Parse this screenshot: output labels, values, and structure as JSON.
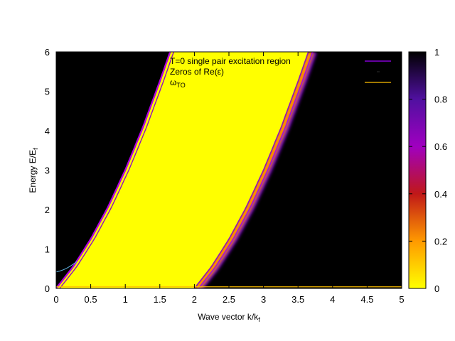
{
  "chart_data": {
    "type": "heatmap",
    "title": "",
    "xlabel_main": "Wave vector k/k",
    "xlabel_sub": "f",
    "ylabel_main": "Energy E/E",
    "ylabel_sub": "f",
    "xlim": [
      0,
      5
    ],
    "ylim": [
      0,
      6
    ],
    "x_ticks": [
      "0",
      "0.5",
      "1",
      "1.5",
      "2",
      "2.5",
      "3",
      "3.5",
      "4",
      "4.5",
      "5"
    ],
    "y_ticks": [
      "0",
      "1",
      "2",
      "3",
      "4",
      "5",
      "6"
    ],
    "colorbar": {
      "range": [
        0,
        1
      ],
      "ticks": [
        "0",
        "0.2",
        "0.4",
        "0.6",
        "0.8",
        "1"
      ],
      "palette": [
        "#ffff00",
        "#ff8000",
        "#c01818",
        "#a000c0",
        "#5010a0",
        "#000000"
      ]
    },
    "legend": {
      "position": "top-right",
      "entries": [
        {
          "label": "T=0 single pair excitation region",
          "color": "#a000ff",
          "style": "line"
        },
        {
          "label": "Zeros of Re(ε)",
          "color": "#1a1a1a",
          "style": "dots"
        },
        {
          "label_main": "ω",
          "label_sub": "TO",
          "color": "#ffc000",
          "style": "line"
        }
      ]
    },
    "series": [
      {
        "name": "T=0 single pair excitation region",
        "type": "band",
        "description_boundaries": "E = k^2 + 2k (upper), E = k^2 - 2k for k >= 2 (lower)",
        "upper_x": [
          0,
          0.25,
          0.5,
          0.75,
          1.0,
          1.25,
          1.5,
          1.65
        ],
        "upper_y": [
          0,
          0.56,
          1.25,
          2.06,
          3.0,
          4.06,
          5.25,
          6.0
        ],
        "lower_x": [
          0,
          2.0,
          2.25,
          2.5,
          2.75,
          3.0,
          3.25,
          3.5,
          3.65
        ],
        "lower_y": [
          0,
          0,
          0.56,
          1.25,
          2.06,
          3.0,
          4.06,
          5.25,
          6.0
        ]
      },
      {
        "name": "Zeros of Re(ε)",
        "x": [
          0,
          0.05,
          0.1,
          0.15,
          0.2,
          0.25,
          0.3
        ],
        "y": [
          0.42,
          0.44,
          0.47,
          0.51,
          0.56,
          0.62,
          0.68
        ]
      },
      {
        "name": "ω_TO",
        "x": [
          0,
          5
        ],
        "y": [
          0.04,
          0.04
        ]
      }
    ]
  }
}
